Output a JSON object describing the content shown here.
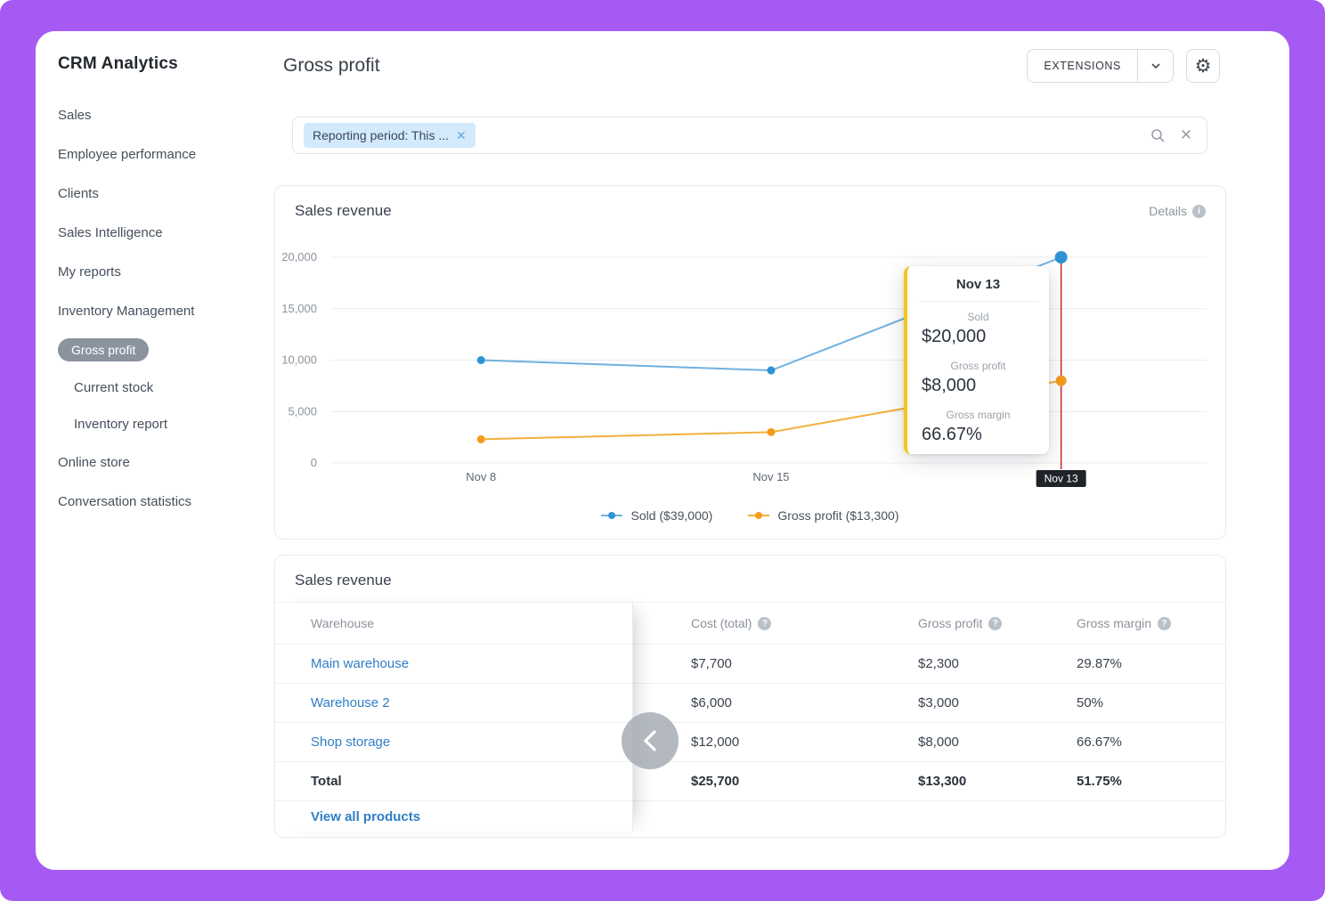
{
  "app": {
    "title": "CRM Analytics"
  },
  "sidebar": {
    "items": [
      {
        "label": "Sales"
      },
      {
        "label": "Employee performance"
      },
      {
        "label": "Clients"
      },
      {
        "label": "Sales Intelligence"
      },
      {
        "label": "My reports"
      },
      {
        "label": "Inventory Management"
      },
      {
        "label": "Gross profit",
        "active": true
      },
      {
        "label": "Current stock",
        "sub": true
      },
      {
        "label": "Inventory report",
        "sub": true
      },
      {
        "label": "Online store"
      },
      {
        "label": "Conversation statistics"
      }
    ]
  },
  "header": {
    "title": "Gross profit",
    "extensions_button": "EXTENSIONS"
  },
  "filter_bar": {
    "chip_label": "Reporting period: This ..."
  },
  "chart_card": {
    "title": "Sales revenue",
    "details_link": "Details"
  },
  "chart_data": {
    "type": "line",
    "x": [
      "Nov 8",
      "Nov 15",
      "Nov 13"
    ],
    "x_axis_labels": [
      "Nov 8",
      "Nov 15"
    ],
    "series": [
      {
        "name": "Sold ($39,000)",
        "color": "#6fb1e0",
        "marker_color": "#2e93d4",
        "values": [
          10000,
          9000,
          20000
        ]
      },
      {
        "name": "Gross profit ($13,300)",
        "color": "#f2b13c",
        "marker_color": "#f59b1e",
        "values": [
          2300,
          3000,
          8000
        ]
      }
    ],
    "yticks": [
      "0",
      "5,000",
      "10,000",
      "15,000",
      "20,000"
    ],
    "ytick_values": [
      0,
      5000,
      10000,
      15000,
      20000
    ],
    "ylim": [
      0,
      20000
    ],
    "grid": true,
    "legend_position": "bottom",
    "highlight": {
      "index": 2,
      "label": "Nov 13",
      "line_color": "#c92a2a"
    }
  },
  "tooltip": {
    "title": "Nov 13",
    "rows": [
      {
        "label": "Sold",
        "value": "$20,000"
      },
      {
        "label": "Gross profit",
        "value": "$8,000"
      },
      {
        "label": "Gross margin",
        "value": "66.67%"
      }
    ],
    "accent_color": "#f5c51b"
  },
  "table_card": {
    "title": "Sales revenue",
    "columns": [
      "Warehouse",
      "Cost (total)",
      "Gross profit",
      "Gross margin"
    ],
    "rows": [
      {
        "warehouse": "Main warehouse",
        "cost": "$7,700",
        "gross_profit": "$2,300",
        "gross_margin": "29.87%"
      },
      {
        "warehouse": "Warehouse 2",
        "cost": "$6,000",
        "gross_profit": "$3,000",
        "gross_margin": "50%"
      },
      {
        "warehouse": "Shop storage",
        "cost": "$12,000",
        "gross_profit": "$8,000",
        "gross_margin": "66.67%"
      }
    ],
    "total_row": {
      "warehouse": "Total",
      "cost": "$25,700",
      "gross_profit": "$13,300",
      "gross_margin": "51.75%"
    },
    "view_all_link": "View all products"
  },
  "theme": {
    "frame_color": "#a55bf3",
    "link_blue": "#2e7ec5"
  }
}
